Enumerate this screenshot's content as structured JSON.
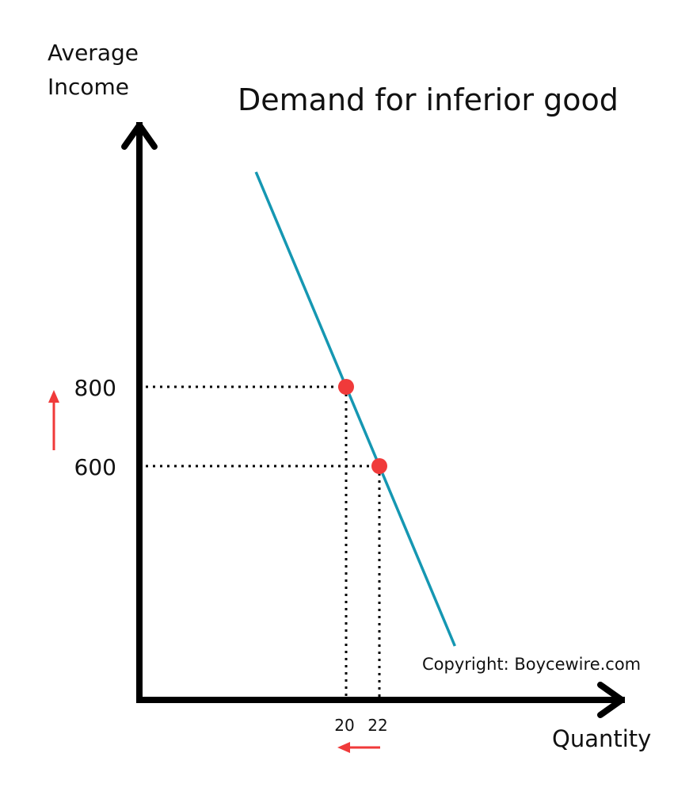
{
  "chart_data": {
    "type": "line",
    "title": "Demand for inferior good",
    "ylabel_lines": [
      "Average",
      "Income"
    ],
    "xlabel": "Quantity",
    "annotation": "Copyright: Boycewire.com",
    "colors": {
      "curve": "#1597b2",
      "points": "#f03a3a",
      "arrows": "#f03a3a",
      "axes": "#000000",
      "guides": "#000000"
    },
    "series": [
      {
        "points": [
          {
            "x": 20,
            "y": 800
          },
          {
            "x": 22,
            "y": 600
          }
        ]
      }
    ],
    "y_ticks": [
      800,
      600
    ],
    "x_ticks": [
      20,
      22
    ],
    "x_tick_labels": [
      "20",
      "22"
    ],
    "y_tick_labels": [
      "800",
      "600"
    ],
    "guides": "dotted",
    "change_arrows": {
      "income": "up",
      "quantity": "left"
    },
    "grid": false
  }
}
